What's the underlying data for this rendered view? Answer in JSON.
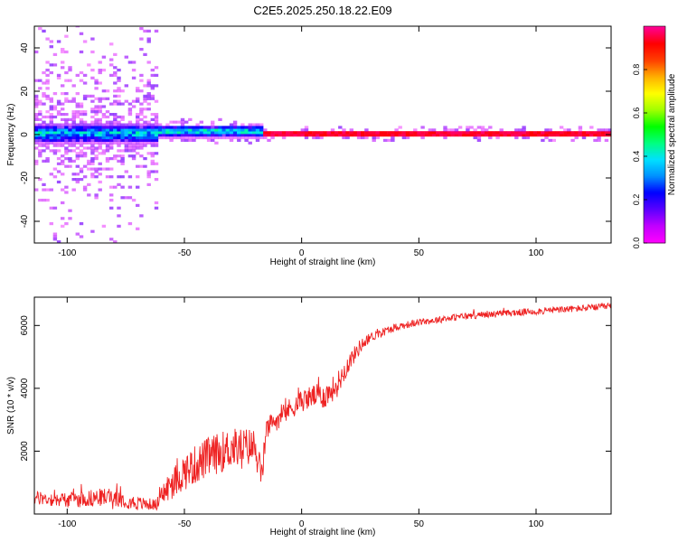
{
  "title": "C2E5.2025.250.18.22.E09",
  "colors": {
    "snr_line": "#ee2222",
    "axis": "#000000",
    "colormap": [
      "#ff00ff",
      "#c000ff",
      "#5a00ff",
      "#0000ff",
      "#0090ff",
      "#00e0ff",
      "#00ff80",
      "#00ff00",
      "#a0ff00",
      "#ffff00",
      "#ffb000",
      "#ff4000",
      "#ff0000",
      "#ff0090"
    ]
  },
  "chart_data": [
    {
      "type": "heatmap",
      "name": "spectrogram",
      "title": "C2E5.2025.250.18.22.E09",
      "xlabel": "Height of straight line (km)",
      "ylabel": "Frequency (Hz)",
      "xlim": [
        -114,
        132
      ],
      "ylim": [
        -50,
        50
      ],
      "xticks": [
        -100,
        -50,
        0,
        50,
        100
      ],
      "yticks": [
        -40,
        -20,
        0,
        20,
        40
      ],
      "xtick_labels": [
        "-100",
        "-50",
        "0",
        "50",
        "100"
      ],
      "ytick_labels": [
        "-40",
        "-20",
        "0",
        "20",
        "40"
      ],
      "colorbar": {
        "label": "Normalized spectral amplitude",
        "range": [
          0,
          1
        ],
        "ticks": [
          0.0,
          0.2,
          0.4,
          0.6,
          0.8
        ],
        "tick_labels": [
          "0.0",
          "0.2",
          "0.4",
          "0.6",
          "0.8"
        ]
      },
      "regions": [
        {
          "x": [
            -114,
            -62
          ],
          "center_freq": 0,
          "core_halfwidth_hz": 5,
          "scatter_halfwidth_hz": 50,
          "peak_amplitude": 0.5
        },
        {
          "x": [
            -62,
            -18
          ],
          "center_freq": 1,
          "core_halfwidth_hz": 3,
          "scatter_halfwidth_hz": 6,
          "peak_amplitude": 0.55
        },
        {
          "x": [
            -18,
            132
          ],
          "center_freq": 0,
          "core_halfwidth_hz": 1,
          "scatter_halfwidth_hz": 4,
          "peak_amplitude": 0.98
        }
      ]
    },
    {
      "type": "line",
      "name": "snr",
      "xlabel": "Height of straight line (km)",
      "ylabel": "SNR (10 * v/v)",
      "xlim": [
        -114,
        132
      ],
      "ylim": [
        0,
        6900
      ],
      "xticks": [
        -100,
        -50,
        0,
        50,
        100
      ],
      "yticks": [
        2000,
        4000,
        6000
      ],
      "xtick_labels": [
        "-100",
        "-50",
        "0",
        "50",
        "100"
      ],
      "ytick_labels": [
        "2000",
        "4000",
        "6000"
      ],
      "series": [
        {
          "name": "SNR",
          "trend_x": [
            -114,
            -100,
            -90,
            -80,
            -70,
            -62,
            -58,
            -50,
            -40,
            -30,
            -20,
            -17,
            -15,
            -10,
            -5,
            0,
            5,
            10,
            15,
            20,
            25,
            30,
            40,
            50,
            60,
            70,
            80,
            90,
            100,
            110,
            120,
            132
          ],
          "trend_y": [
            500,
            450,
            500,
            560,
            330,
            300,
            750,
            1350,
            1800,
            2100,
            2150,
            1200,
            2700,
            3050,
            3350,
            3600,
            3750,
            3750,
            4100,
            4800,
            5350,
            5650,
            5950,
            6100,
            6200,
            6300,
            6350,
            6400,
            6450,
            6500,
            6550,
            6600
          ],
          "noise_amplitude": [
            450,
            500,
            550,
            600,
            450,
            350,
            900,
            1200,
            1300,
            1300,
            1200,
            900,
            700,
            700,
            700,
            700,
            750,
            800,
            800,
            600,
            450,
            300,
            250,
            220,
            220,
            220,
            220,
            220,
            220,
            220,
            220,
            220
          ]
        }
      ]
    }
  ]
}
